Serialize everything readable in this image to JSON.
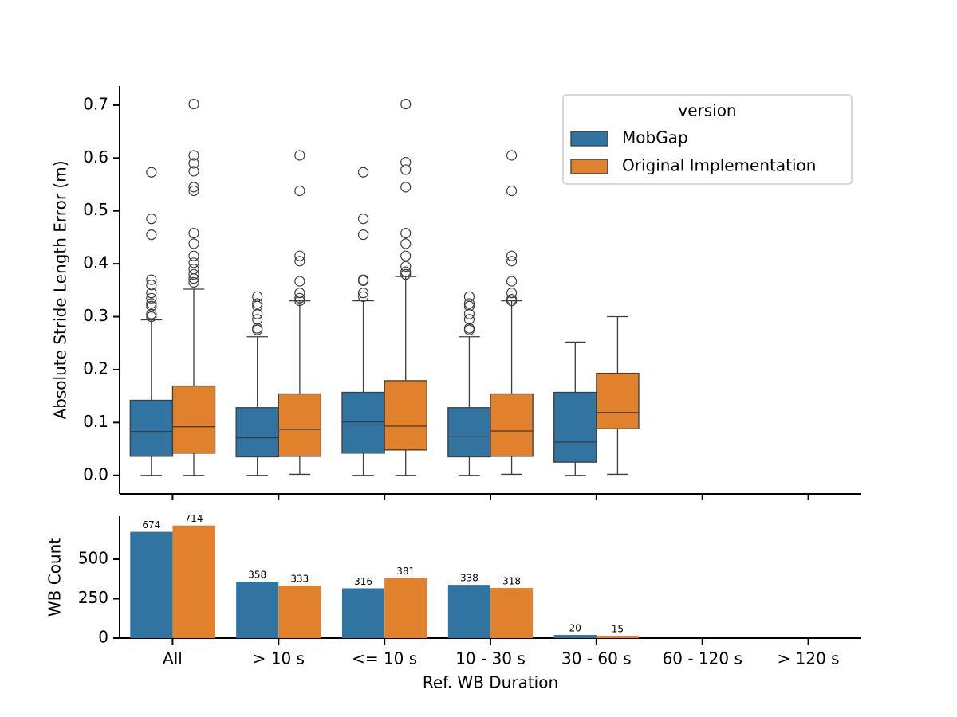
{
  "chart_data": [
    {
      "type": "box",
      "ylabel": "Absolute Stride Length Error (m)",
      "ylim": [
        -0.035,
        0.736
      ],
      "yticks": [
        {
          "value": 0,
          "label": "0.0"
        },
        0.1,
        0.2,
        0.3,
        0.4,
        0.5,
        0.6,
        0.7
      ],
      "legend_title": "version",
      "legend_loc": "upper right",
      "series": [
        {
          "name": "MobGap",
          "color": "#3274a1",
          "low": [
            0,
            0,
            0,
            0,
            0,
            null,
            null
          ],
          "q1": [
            0.036,
            0.035,
            0.042,
            0.035,
            0.025,
            null,
            null
          ],
          "median": [
            0.083,
            0.071,
            0.101,
            0.073,
            0.063,
            null,
            null
          ],
          "q3": [
            0.142,
            0.128,
            0.157,
            0.128,
            0.157,
            null,
            null
          ],
          "high": [
            0.294,
            0.262,
            0.33,
            0.262,
            0.252,
            null,
            null
          ],
          "outliers": [
            [
              0.573,
              0.485,
              0.455,
              0.37,
              0.36,
              0.345,
              0.335,
              0.325,
              0.32,
              0.305,
              0.3
            ],
            [
              0.338,
              0.325,
              0.32,
              0.305,
              0.295,
              0.278,
              0.275
            ],
            [
              0.573,
              0.485,
              0.455,
              0.37,
              0.368,
              0.345,
              0.338
            ],
            [
              0.338,
              0.325,
              0.32,
              0.305,
              0.295,
              0.278,
              0.275
            ],
            [],
            null,
            null
          ]
        },
        {
          "name": "Original Implementation",
          "color": "#e1812c",
          "low": [
            0,
            0.002,
            0,
            0.002,
            0.002,
            null,
            null
          ],
          "q1": [
            0.042,
            0.036,
            0.048,
            0.036,
            0.088,
            null,
            null
          ],
          "median": [
            0.092,
            0.087,
            0.093,
            0.084,
            0.119,
            null,
            null
          ],
          "q3": [
            0.169,
            0.154,
            0.179,
            0.154,
            0.193,
            null,
            null
          ],
          "high": [
            0.352,
            0.33,
            0.376,
            0.33,
            0.3,
            null,
            null
          ],
          "outliers": [
            [
              0.702,
              0.605,
              0.59,
              0.575,
              0.545,
              0.538,
              0.458,
              0.438,
              0.415,
              0.402,
              0.39,
              0.38,
              0.372,
              0.365
            ],
            [
              0.605,
              0.538,
              0.415,
              0.405,
              0.367,
              0.345,
              0.335,
              0.33
            ],
            [
              0.702,
              0.592,
              0.578,
              0.545,
              0.458,
              0.438,
              0.415,
              0.395,
              0.385,
              0.38
            ],
            [
              0.605,
              0.538,
              0.415,
              0.405,
              0.367,
              0.345,
              0.333,
              0.33
            ],
            [],
            null,
            null
          ]
        }
      ]
    },
    {
      "type": "bar",
      "xlabel": "Ref. WB Duration",
      "ylabel": "WB Count",
      "categories": [
        "All",
        "> 10 s",
        "<= 10 s",
        "10 - 30 s",
        "30 - 60 s",
        "60 - 120 s",
        "> 120 s"
      ],
      "ylim": [
        0,
        773
      ],
      "yticks": [
        0,
        250,
        500
      ],
      "series": [
        {
          "name": "MobGap",
          "color": "#3274a1",
          "values": [
            674,
            358,
            316,
            338,
            20,
            null,
            null
          ]
        },
        {
          "name": "Original Implementation",
          "color": "#e1812c",
          "values": [
            714,
            333,
            381,
            318,
            15,
            null,
            null
          ]
        }
      ]
    }
  ]
}
